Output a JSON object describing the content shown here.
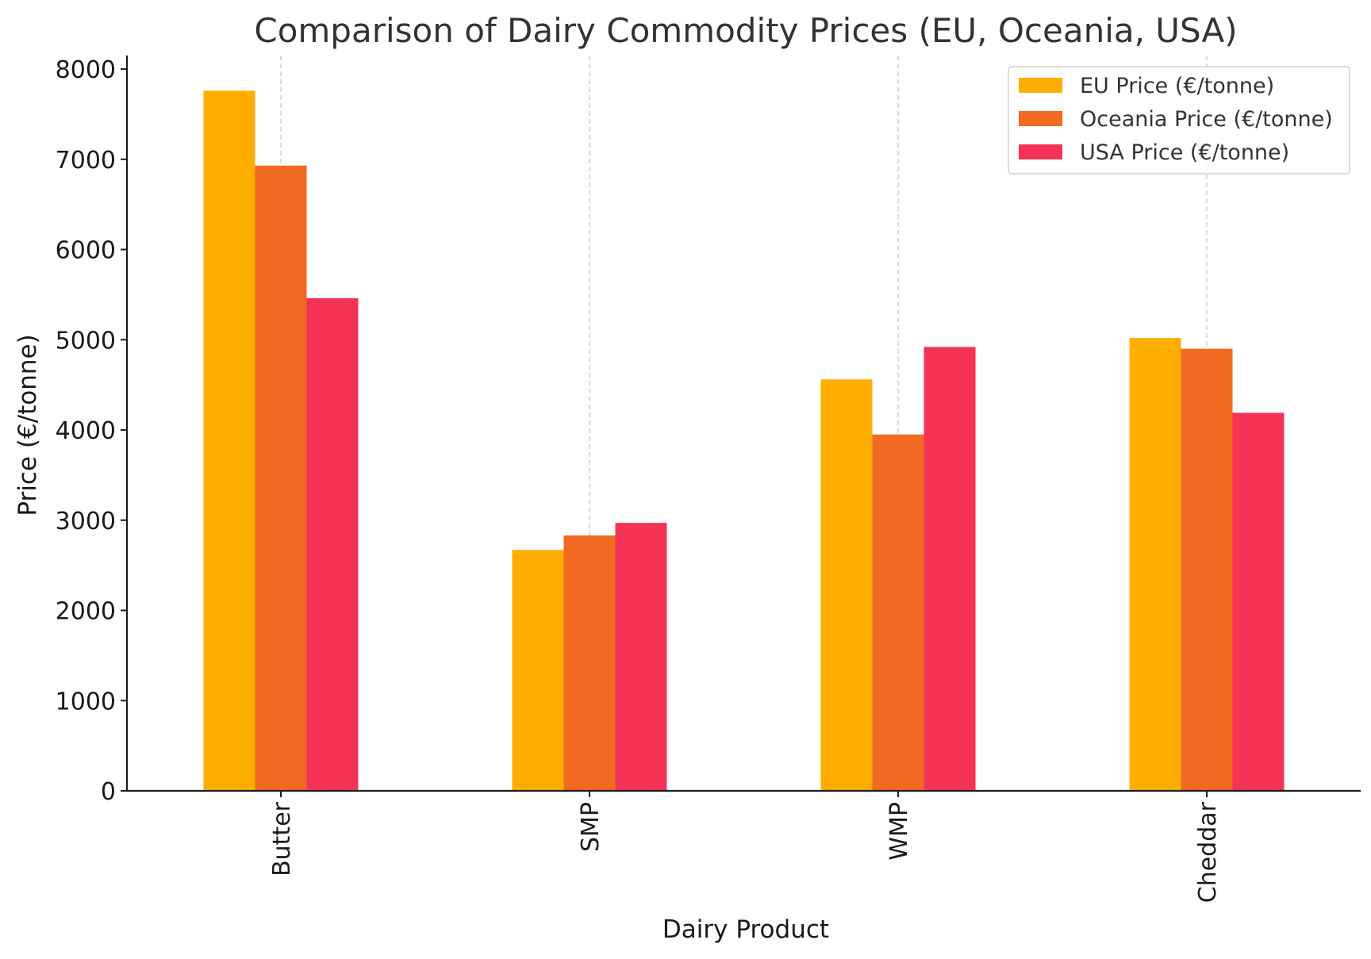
{
  "chart_data": {
    "type": "bar",
    "title": "Comparison of Dairy Commodity Prices (EU, Oceania, USA)",
    "xlabel": "Dairy Product",
    "ylabel": "Price (€/tonne)",
    "categories": [
      "Butter",
      "SMP",
      "WMP",
      "Cheddar"
    ],
    "series": [
      {
        "name": "EU Price (€/tonne)",
        "color": "#FFAE00",
        "values": [
          7760,
          2670,
          4560,
          5020
        ]
      },
      {
        "name": "Oceania Price (€/tonne)",
        "color": "#F26A21",
        "values": [
          6930,
          2830,
          3950,
          4900
        ]
      },
      {
        "name": "USA Price (€/tonne)",
        "color": "#F43357",
        "values": [
          5460,
          2970,
          4920,
          4190
        ]
      }
    ],
    "ylim": [
      0,
      8150
    ],
    "yticks": [
      0,
      1000,
      2000,
      3000,
      4000,
      5000,
      6000,
      7000,
      8000
    ],
    "grid": "vertical dashed at category centers",
    "legend_position": "top-right"
  }
}
